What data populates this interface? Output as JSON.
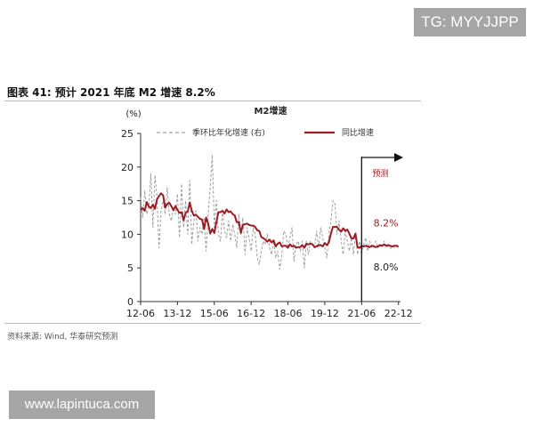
{
  "tag_label": "TG: MYYJJPP",
  "figure_title": "图表 41:   预计 2021 年底 M2 增速 8.2%",
  "source_text": "资料来源: Wind, 华泰研究预测",
  "watermark_text": "www.lapintuca.com",
  "chart_data": {
    "type": "line",
    "title": "M2增速",
    "ylabel": "(%)",
    "ylim": [
      0,
      25
    ],
    "yticks": [
      0,
      5,
      10,
      15,
      20,
      25
    ],
    "xlim": [
      2012.417,
      2023.0
    ],
    "xtick_labels": [
      "12-06",
      "13-12",
      "15-06",
      "16-12",
      "18-06",
      "19-12",
      "21-06",
      "22-12"
    ],
    "xtick_values": [
      2012.417,
      2013.917,
      2015.417,
      2016.917,
      2018.417,
      2019.917,
      2021.417,
      2022.917
    ],
    "grid": false,
    "legend_position": "top",
    "forecast_start": 2021.417,
    "forecast_label": "预测",
    "annotations": [
      {
        "text": "8.2%",
        "x": 2021.9,
        "y": 11.2,
        "color": "#9b1b22"
      },
      {
        "text": "8.0%",
        "x": 2021.9,
        "y": 4.6,
        "color": "#222222"
      }
    ],
    "series": [
      {
        "name": "季环比年化增速 (右)",
        "style": "dashed",
        "color": "#9e9e9e",
        "x": [
          2012.417,
          2012.5,
          2012.583,
          2012.667,
          2012.75,
          2012.833,
          2012.917,
          2013.0,
          2013.083,
          2013.167,
          2013.25,
          2013.333,
          2013.417,
          2013.5,
          2013.583,
          2013.667,
          2013.75,
          2013.833,
          2013.917,
          2014.0,
          2014.083,
          2014.167,
          2014.25,
          2014.333,
          2014.417,
          2014.5,
          2014.583,
          2014.667,
          2014.75,
          2014.833,
          2014.917,
          2015.0,
          2015.083,
          2015.167,
          2015.25,
          2015.333,
          2015.417,
          2015.5,
          2015.583,
          2015.667,
          2015.75,
          2015.833,
          2015.917,
          2016.0,
          2016.083,
          2016.167,
          2016.25,
          2016.333,
          2016.417,
          2016.5,
          2016.583,
          2016.667,
          2016.75,
          2016.833,
          2016.917,
          2017.0,
          2017.083,
          2017.167,
          2017.25,
          2017.333,
          2017.417,
          2017.5,
          2017.583,
          2017.667,
          2017.75,
          2017.833,
          2017.917,
          2018.0,
          2018.083,
          2018.167,
          2018.25,
          2018.333,
          2018.417,
          2018.5,
          2018.583,
          2018.667,
          2018.75,
          2018.833,
          2018.917,
          2019.0,
          2019.083,
          2019.167,
          2019.25,
          2019.333,
          2019.417,
          2019.5,
          2019.583,
          2019.667,
          2019.75,
          2019.833,
          2019.917,
          2020.0,
          2020.083,
          2020.167,
          2020.25,
          2020.333,
          2020.417,
          2020.5,
          2020.583,
          2020.667,
          2020.75,
          2020.833,
          2020.917,
          2021.0,
          2021.083,
          2021.167,
          2021.25,
          2021.333,
          2021.417,
          2021.5,
          2021.583,
          2021.667,
          2021.75,
          2021.833,
          2021.917,
          2022.0,
          2022.083,
          2022.167,
          2022.25,
          2022.333,
          2022.417,
          2022.5,
          2022.583,
          2022.667,
          2022.75,
          2022.833,
          2022.917
        ],
        "values": [
          15.5,
          12.5,
          16.5,
          13.0,
          14.0,
          19.0,
          11.0,
          18.8,
          15.5,
          8.0,
          13.5,
          15.0,
          13.0,
          17.0,
          13.0,
          12.0,
          14.0,
          13.0,
          16.0,
          9.5,
          17.5,
          11.0,
          15.0,
          10.0,
          18.0,
          8.5,
          12.0,
          13.5,
          9.0,
          11.0,
          10.0,
          12.5,
          7.5,
          13.0,
          17.0,
          21.8,
          11.0,
          15.0,
          10.0,
          9.0,
          13.5,
          10.5,
          9.5,
          12.0,
          9.0,
          11.5,
          10.0,
          8.0,
          13.0,
          10.0,
          12.5,
          7.0,
          11.0,
          9.5,
          7.5,
          11.0,
          10.0,
          6.5,
          5.5,
          7.5,
          9.0,
          8.5,
          10.0,
          8.0,
          7.0,
          9.0,
          6.5,
          7.5,
          4.8,
          7.0,
          10.5,
          10.0,
          8.0,
          9.5,
          11.0,
          6.0,
          8.5,
          9.0,
          7.5,
          9.0,
          5.0,
          9.0,
          7.0,
          9.0,
          8.5,
          8.0,
          10.5,
          8.0,
          11.0,
          9.5,
          8.0,
          6.5,
          10.0,
          12.0,
          15.0,
          14.5,
          10.0,
          12.0,
          9.0,
          7.0,
          10.5,
          9.0,
          7.5,
          9.5,
          7.0,
          10.0,
          7.0,
          9.0,
          7.0,
          8.5,
          9.5,
          7.5,
          9.0,
          8.0,
          8.5,
          9.0,
          8.0,
          8.5,
          8.0,
          9.0,
          8.0,
          8.5,
          7.8,
          8.3,
          8.0,
          8.2,
          8.0
        ]
      },
      {
        "name": "同比增速",
        "style": "solid",
        "color": "#9b1b22",
        "x": [
          2012.417,
          2012.5,
          2012.583,
          2012.667,
          2012.75,
          2012.833,
          2012.917,
          2013.0,
          2013.083,
          2013.167,
          2013.25,
          2013.333,
          2013.417,
          2013.5,
          2013.583,
          2013.667,
          2013.75,
          2013.833,
          2013.917,
          2014.0,
          2014.083,
          2014.167,
          2014.25,
          2014.333,
          2014.417,
          2014.5,
          2014.583,
          2014.667,
          2014.75,
          2014.833,
          2014.917,
          2015.0,
          2015.083,
          2015.167,
          2015.25,
          2015.333,
          2015.417,
          2015.5,
          2015.583,
          2015.667,
          2015.75,
          2015.833,
          2015.917,
          2016.0,
          2016.083,
          2016.167,
          2016.25,
          2016.333,
          2016.417,
          2016.5,
          2016.583,
          2016.667,
          2016.75,
          2016.833,
          2016.917,
          2017.0,
          2017.083,
          2017.167,
          2017.25,
          2017.333,
          2017.417,
          2017.5,
          2017.583,
          2017.667,
          2017.75,
          2017.833,
          2017.917,
          2018.0,
          2018.083,
          2018.167,
          2018.25,
          2018.333,
          2018.417,
          2018.5,
          2018.583,
          2018.667,
          2018.75,
          2018.833,
          2018.917,
          2019.0,
          2019.083,
          2019.167,
          2019.25,
          2019.333,
          2019.417,
          2019.5,
          2019.583,
          2019.667,
          2019.75,
          2019.833,
          2019.917,
          2020.0,
          2020.083,
          2020.167,
          2020.25,
          2020.333,
          2020.417,
          2020.5,
          2020.583,
          2020.667,
          2020.75,
          2020.833,
          2020.917,
          2021.0,
          2021.083,
          2021.167,
          2021.25,
          2021.333,
          2021.417,
          2021.5,
          2021.583,
          2021.667,
          2021.75,
          2021.833,
          2021.917,
          2022.0,
          2022.083,
          2022.167,
          2022.25,
          2022.333,
          2022.417,
          2022.5,
          2022.583,
          2022.667,
          2022.75,
          2022.833,
          2022.917
        ],
        "values": [
          13.6,
          13.9,
          13.5,
          14.8,
          14.1,
          13.9,
          14.4,
          13.8,
          15.2,
          15.7,
          16.1,
          15.8,
          14.0,
          14.5,
          14.7,
          14.2,
          13.6,
          14.2,
          13.6,
          13.2,
          13.3,
          12.1,
          13.2,
          13.4,
          14.7,
          13.5,
          12.8,
          12.9,
          12.6,
          12.3,
          12.2,
          10.8,
          12.5,
          11.6,
          10.1,
          10.8,
          10.2,
          11.8,
          13.3,
          13.3,
          13.5,
          13.1,
          13.7,
          13.3,
          13.4,
          13.0,
          12.8,
          11.8,
          11.8,
          10.2,
          11.4,
          11.5,
          11.6,
          11.4,
          11.3,
          11.3,
          11.1,
          10.6,
          10.5,
          9.6,
          9.4,
          9.2,
          8.9,
          9.2,
          8.8,
          9.1,
          8.2,
          8.6,
          8.8,
          8.2,
          8.3,
          8.3,
          8.0,
          8.5,
          8.2,
          8.3,
          8.0,
          8.1,
          8.1,
          8.4,
          8.0,
          8.6,
          8.5,
          8.6,
          8.5,
          8.1,
          8.2,
          8.4,
          8.4,
          8.2,
          8.7,
          8.4,
          8.8,
          10.1,
          11.1,
          11.1,
          11.1,
          10.7,
          10.4,
          10.9,
          10.5,
          10.7,
          10.1,
          9.4,
          9.4,
          10.1,
          8.1,
          8.0,
          8.3,
          8.2,
          8.3,
          8.2,
          8.1,
          8.3,
          8.2,
          8.1,
          8.2,
          8.4,
          8.3,
          8.5,
          8.3,
          8.4,
          8.3,
          8.2,
          8.3,
          8.3,
          8.2
        ]
      }
    ]
  }
}
